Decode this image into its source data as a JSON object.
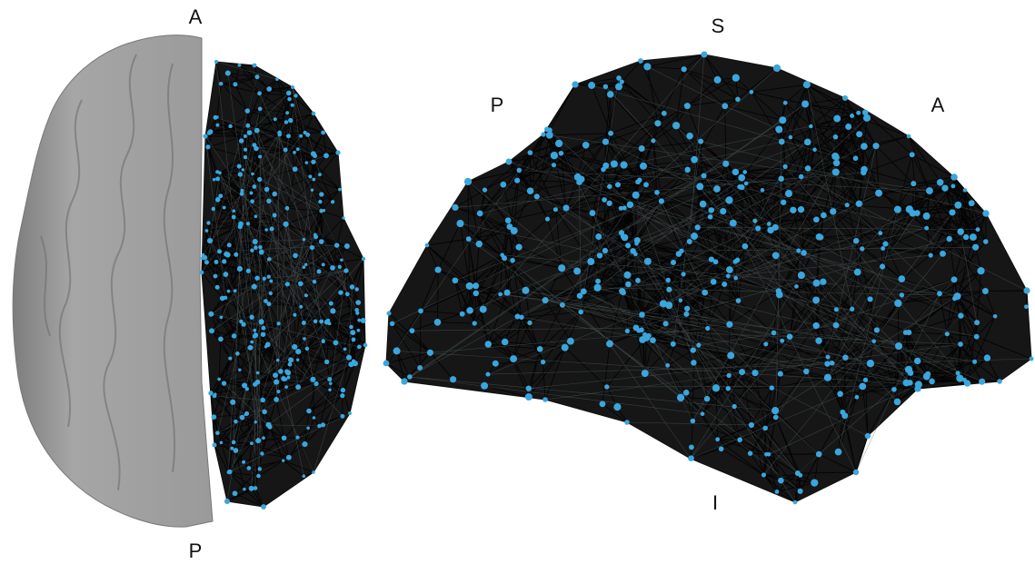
{
  "left_view": {
    "top_label": "A",
    "bottom_label": "P"
  },
  "right_view": {
    "top_label": "S",
    "left_label": "P",
    "right_label": "A",
    "bottom_label": "I"
  }
}
